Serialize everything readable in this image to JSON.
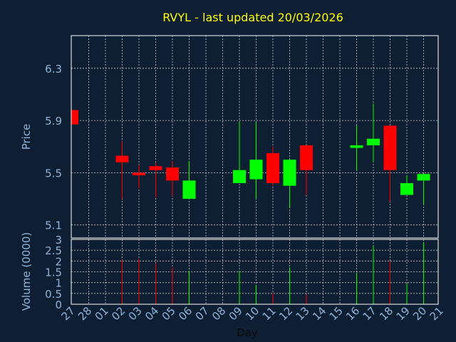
{
  "chart_data": {
    "type": "candlestick",
    "title": "RVYL - last updated 20/03/2026",
    "xlabel": "Day",
    "ylabel": "Price",
    "ylim": [
      5.0,
      6.55
    ],
    "yticks": [
      5.1,
      5.5,
      5.9,
      6.3
    ],
    "ytick_labels": [
      "5.1",
      "5.5",
      "5.9",
      "6.3"
    ],
    "grid": true,
    "colors": {
      "background": "#0f1f33",
      "up": "#00ff00",
      "down": "#ff0000",
      "title": "#ffff00",
      "label": "#8fb3d9",
      "frame": "#ffffff"
    },
    "categories": [
      "27",
      "28",
      "01",
      "02",
      "03",
      "04",
      "05",
      "06",
      "07",
      "08",
      "09",
      "10",
      "11",
      "12",
      "13",
      "14",
      "15",
      "16",
      "17",
      "18",
      "19",
      "20",
      "21"
    ],
    "candles": [
      {
        "day": "27",
        "open": 5.98,
        "high": 5.98,
        "low": 5.87,
        "close": 5.87
      },
      {
        "day": "02",
        "open": 5.63,
        "high": 5.74,
        "low": 5.3,
        "close": 5.58
      },
      {
        "day": "03",
        "open": 5.5,
        "high": 5.56,
        "low": 5.38,
        "close": 5.48
      },
      {
        "day": "04",
        "open": 5.55,
        "high": 5.58,
        "low": 5.31,
        "close": 5.52
      },
      {
        "day": "05",
        "open": 5.54,
        "high": 5.59,
        "low": 5.32,
        "close": 5.44
      },
      {
        "day": "06",
        "open": 5.3,
        "high": 5.59,
        "low": 5.3,
        "close": 5.44
      },
      {
        "day": "09",
        "open": 5.42,
        "high": 5.89,
        "low": 5.42,
        "close": 5.52
      },
      {
        "day": "10",
        "open": 5.45,
        "high": 5.89,
        "low": 5.3,
        "close": 5.6
      },
      {
        "day": "11",
        "open": 5.65,
        "high": 5.7,
        "low": 5.4,
        "close": 5.42
      },
      {
        "day": "12",
        "open": 5.4,
        "high": 5.6,
        "low": 5.23,
        "close": 5.6
      },
      {
        "day": "13",
        "open": 5.71,
        "high": 5.71,
        "low": 5.33,
        "close": 5.52
      },
      {
        "day": "16",
        "open": 5.69,
        "high": 5.86,
        "low": 5.52,
        "close": 5.71
      },
      {
        "day": "17",
        "open": 5.71,
        "high": 6.03,
        "low": 5.58,
        "close": 5.76
      },
      {
        "day": "18",
        "open": 5.86,
        "high": 5.86,
        "low": 5.28,
        "close": 5.52
      },
      {
        "day": "19",
        "open": 5.33,
        "high": 5.48,
        "low": 5.33,
        "close": 5.42
      },
      {
        "day": "20",
        "open": 5.44,
        "high": 5.49,
        "low": 5.26,
        "close": 5.49
      }
    ],
    "volume": {
      "ylabel": "Volume (0000)",
      "ylim": [
        0,
        3
      ],
      "yticks": [
        0,
        0.5,
        1,
        1.5,
        2,
        2.5,
        3
      ],
      "ytick_labels": [
        "0",
        "0.5",
        "1",
        "1.5",
        "2",
        "2.5",
        "3"
      ],
      "bars": [
        {
          "day": "02",
          "value": 2.05,
          "dir": "down"
        },
        {
          "day": "03",
          "value": 2.1,
          "dir": "down"
        },
        {
          "day": "04",
          "value": 1.9,
          "dir": "down"
        },
        {
          "day": "05",
          "value": 1.7,
          "dir": "down"
        },
        {
          "day": "06",
          "value": 1.55,
          "dir": "up"
        },
        {
          "day": "09",
          "value": 1.55,
          "dir": "up"
        },
        {
          "day": "10",
          "value": 0.9,
          "dir": "up"
        },
        {
          "day": "11",
          "value": 0.5,
          "dir": "down"
        },
        {
          "day": "12",
          "value": 1.7,
          "dir": "up"
        },
        {
          "day": "13",
          "value": 0.45,
          "dir": "down"
        },
        {
          "day": "16",
          "value": 1.45,
          "dir": "up"
        },
        {
          "day": "17",
          "value": 2.7,
          "dir": "up"
        },
        {
          "day": "18",
          "value": 2.0,
          "dir": "down"
        },
        {
          "day": "19",
          "value": 0.95,
          "dir": "up"
        },
        {
          "day": "20",
          "value": 2.85,
          "dir": "up"
        }
      ]
    }
  }
}
